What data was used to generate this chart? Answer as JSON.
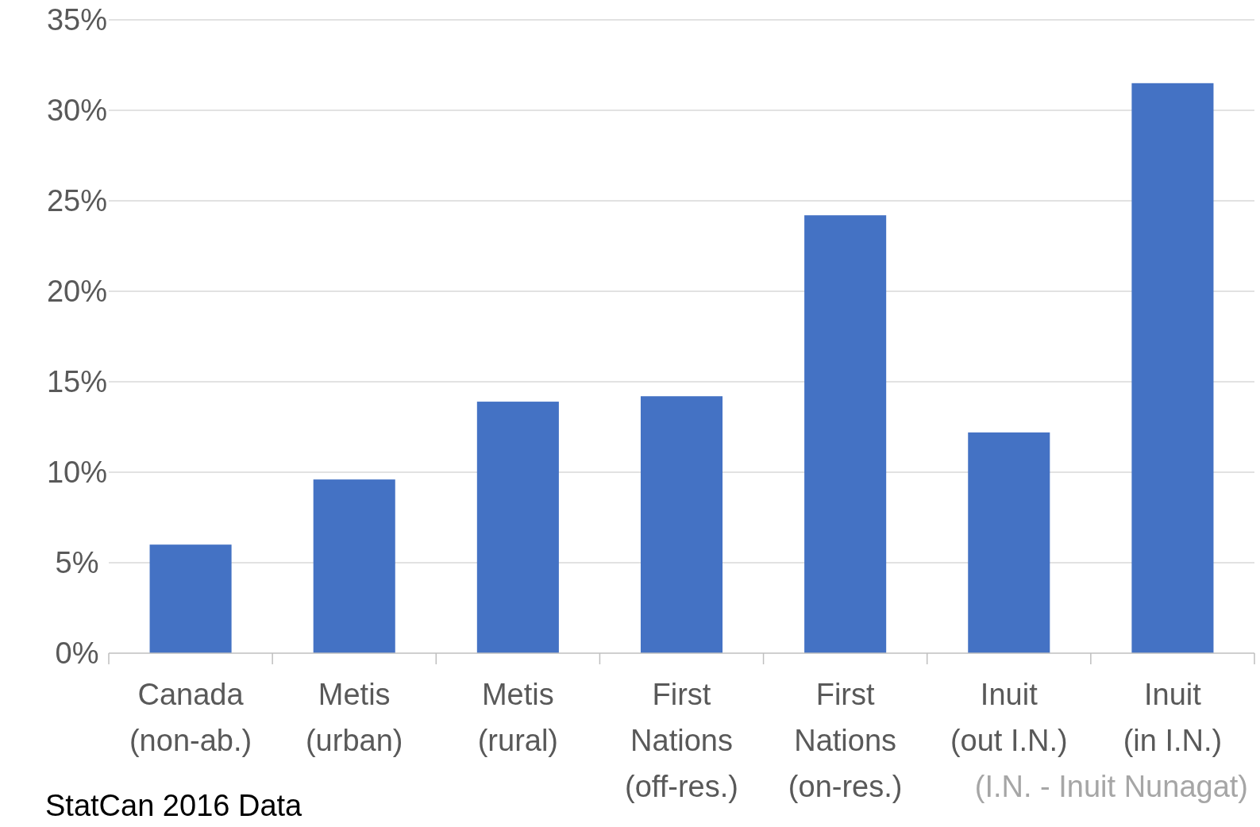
{
  "chart_data": {
    "type": "bar",
    "categories": [
      "Canada\n(non-ab.)",
      "Metis\n(urban)",
      "Metis\n(rural)",
      "First\nNations\n(off-res.)",
      "First\nNations\n(on-res.)",
      "Inuit\n(out I.N.)",
      "Inuit\n(in I.N.)"
    ],
    "values": [
      6.0,
      9.6,
      13.9,
      14.2,
      24.2,
      12.2,
      31.5
    ],
    "color": "#4472c4",
    "ylim": [
      0,
      35
    ],
    "yticks": [
      {
        "value": 0,
        "label": "0%"
      },
      {
        "value": 5,
        "label": "5%"
      },
      {
        "value": 10,
        "label": "10%"
      },
      {
        "value": 15,
        "label": "15%"
      },
      {
        "value": 20,
        "label": "20%"
      },
      {
        "value": 25,
        "label": "25%"
      },
      {
        "value": 30,
        "label": "30%"
      },
      {
        "value": 35,
        "label": "35%"
      }
    ],
    "grid": "y",
    "annotations": [
      "(I.N. - Inuit Nunagat)",
      "StatCan 2016 Data"
    ]
  }
}
